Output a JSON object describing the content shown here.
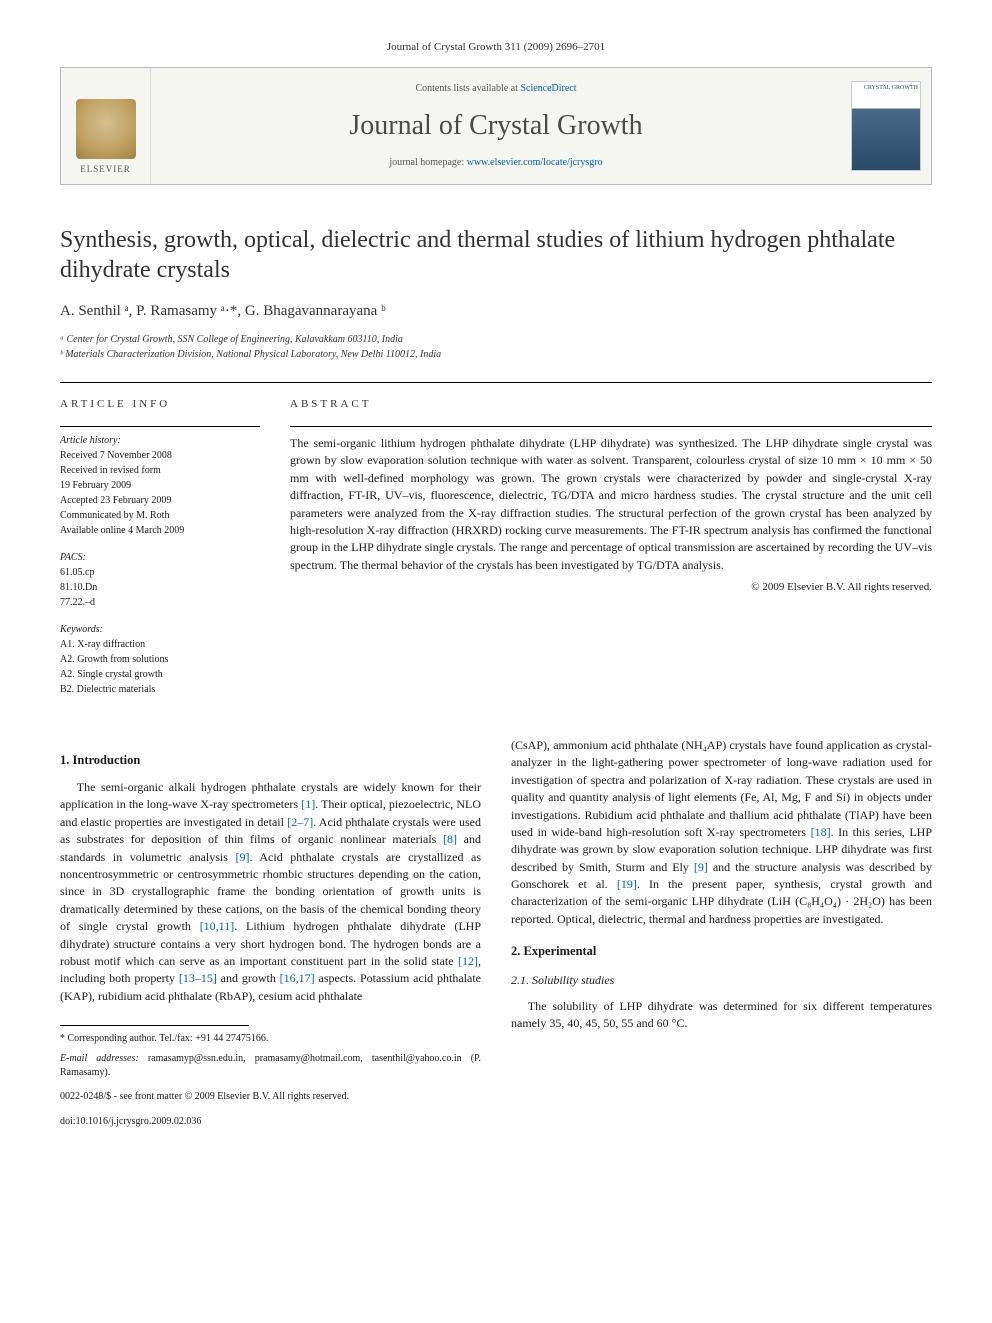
{
  "journal_header": "Journal of Crystal Growth 311 (2009) 2696–2701",
  "banner": {
    "contents_prefix": "Contents lists available at ",
    "contents_link": "ScienceDirect",
    "journal_name": "Journal of Crystal Growth",
    "homepage_prefix": "journal homepage: ",
    "homepage_link": "www.elsevier.com/locate/jcrysgro",
    "elsevier_label": "ELSEVIER",
    "cover_text": "CRYSTAL GROWTH"
  },
  "title": "Synthesis, growth, optical, dielectric and thermal studies of lithium hydrogen phthalate dihydrate crystals",
  "authors_html": "A. Senthil ᵃ, P. Ramasamy ᵃ·*, G. Bhagavannarayana ᵇ",
  "affiliations": {
    "a": "ᵃ Center for Crystal Growth, SSN College of Engineering, Kalavakkam 603110, India",
    "b": "ᵇ Materials Characterization Division, National Physical Laboratory, New Delhi 110012, India"
  },
  "info": {
    "head": "ARTICLE INFO",
    "history_label": "Article history:",
    "history": [
      "Received 7 November 2008",
      "Received in revised form",
      "19 February 2009",
      "Accepted 23 February 2009",
      "Communicated by M. Roth",
      "Available online 4 March 2009"
    ],
    "pacs_label": "PACS:",
    "pacs": [
      "61.05.cp",
      "81.10.Dn",
      "77.22.–d"
    ],
    "keywords_label": "Keywords:",
    "keywords": [
      "A1. X-ray diffraction",
      "A2. Growth from solutions",
      "A2. Single crystal growth",
      "B2. Dielectric materials"
    ]
  },
  "abstract": {
    "head": "ABSTRACT",
    "text": "The semi-organic lithium hydrogen phthalate dihydrate (LHP dihydrate) was synthesized. The LHP dihydrate single crystal was grown by slow evaporation solution technique with water as solvent. Transparent, colourless crystal of size 10 mm × 10 mm × 50 mm with well-defined morphology was grown. The grown crystals were characterized by powder and single-crystal X-ray diffraction, FT-IR, UV–vis, fluorescence, dielectric, TG/DTA and micro hardness studies. The crystal structure and the unit cell parameters were analyzed from the X-ray diffraction studies. The structural perfection of the grown crystal has been analyzed by high-resolution X-ray diffraction (HRXRD) rocking curve measurements. The FT-IR spectrum analysis has confirmed the functional group in the LHP dihydrate single crystals. The range and percentage of optical transmission are ascertained by recording the UV–vis spectrum. The thermal behavior of the crystals has been investigated by TG/DTA analysis.",
    "copyright": "© 2009 Elsevier B.V. All rights reserved."
  },
  "sections": {
    "s1_head": "1. Introduction",
    "s1_p1": "The semi-organic alkali hydrogen phthalate crystals are widely known for their application in the long-wave X-ray spectrometers [1]. Their optical, piezoelectric, NLO and elastic properties are investigated in detail [2–7]. Acid phthalate crystals were used as substrates for deposition of thin films of organic nonlinear materials [8] and standards in volumetric analysis [9]. Acid phthalate crystals are crystallized as noncentrosymmetric or centrosymmetric rhombic structures depending on the cation, since in 3D crystallographic frame the bonding orientation of growth units is dramatically determined by these cations, on the basis of the chemical bonding theory of single crystal growth [10,11]. Lithium hydrogen phthalate dihydrate (LHP dihydrate) structure contains a very short hydrogen bond. The hydrogen bonds are a robust motif which can serve as an important constituent part in the solid state [12], including both property [13–15] and growth [16,17] aspects. Potassium acid phthalate (KAP), rubidium acid phthalate (RbAP), cesium acid phthalate",
    "s1_p2": "(CsAP), ammonium acid phthalate (NH₄AP) crystals have found application as crystal-analyzer in the light-gathering power spectrometer of long-wave radiation used for investigation of spectra and polarization of X-ray radiation. These crystals are used in quality and quantity analysis of light elements (Fe, Al, Mg, F and Si) in objects under investigations. Rubidium acid phthalate and thallium acid phthalate (TlAP) have been used in wide-band high-resolution soft X-ray spectrometers [18]. In this series, LHP dihydrate was grown by slow evaporation solution technique. LHP dihydrate was first described by Smith, Sturm and Ely [9] and the structure analysis was described by Gonschorek et al. [19]. In the present paper, synthesis, crystal growth and characterization of the semi-organic LHP dihydrate (LiH (C₈H₄O₄) · 2H₂O) has been reported. Optical, dielectric, thermal and hardness properties are investigated.",
    "s2_head": "2. Experimental",
    "s21_head": "2.1. Solubility studies",
    "s21_p1": "The solubility of LHP dihydrate was determined for six different temperatures namely 35, 40, 45, 50, 55 and 60 °C."
  },
  "footnote": {
    "corr": "* Corresponding author. Tel./fax: +91 44 27475166.",
    "email_label": "E-mail addresses:",
    "emails": " ramasamyp@ssn.edu.in, pramasamy@hotmail.com, tasenthil@yahoo.co.in (P. Ramasamy)."
  },
  "doi": {
    "line1": "0022-0248/$ - see front matter © 2009 Elsevier B.V. All rights reserved.",
    "line2": "doi:10.1016/j.jcrysgro.2009.02.036"
  },
  "colors": {
    "link": "#0066aa",
    "text": "#1a1a1a",
    "border": "#000000"
  }
}
